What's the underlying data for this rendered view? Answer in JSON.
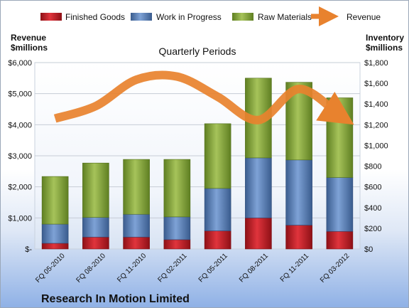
{
  "chart_data": {
    "type": "bar",
    "stacked": true,
    "title": "Quarterly Periods",
    "company": "Research In Motion Limited",
    "categories": [
      "FQ 05-2010",
      "FQ 08-2010",
      "FQ 11-2010",
      "FQ 02-2011",
      "FQ 05-2011",
      "FQ 08-2011",
      "FQ 11-2011",
      "FQ 03-2012"
    ],
    "left_axis": {
      "label_line1": "Revenue",
      "label_line2": "$millions",
      "ylim": [
        0,
        6000
      ],
      "ticks": [
        0,
        1000,
        2000,
        3000,
        4000,
        5000,
        6000
      ],
      "tick_labels": [
        "$-",
        "$1,000",
        "$2,000",
        "$3,000",
        "$4,000",
        "$5,000",
        "$6,000"
      ]
    },
    "right_axis": {
      "label_line1": "Inventory",
      "label_line2": "$millions",
      "ylim": [
        0,
        1800
      ],
      "ticks": [
        0,
        200,
        400,
        600,
        800,
        1000,
        1200,
        1400,
        1600,
        1800
      ],
      "tick_labels": [
        "$0",
        "$200",
        "$400",
        "$600",
        "$800",
        "$1,000",
        "$1,200",
        "$1,400",
        "$1,600",
        "$1,800"
      ]
    },
    "series": [
      {
        "name": "Finished Goods",
        "axis": "right",
        "kind": "bar",
        "color": "#c0202a",
        "values": [
          55,
          115,
          115,
          90,
          175,
          300,
          230,
          170
        ]
      },
      {
        "name": "Work in Progress",
        "axis": "right",
        "kind": "bar",
        "color": "#4f79b6",
        "values": [
          185,
          190,
          220,
          220,
          410,
          580,
          630,
          520
        ]
      },
      {
        "name": "Raw Materials",
        "axis": "right",
        "kind": "bar",
        "color": "#86a83c",
        "values": [
          460,
          525,
          530,
          555,
          625,
          770,
          750,
          770
        ]
      },
      {
        "name": "Revenue",
        "axis": "left",
        "kind": "line",
        "color": "#e8822e",
        "values": [
          4200,
          4600,
          5450,
          5550,
          4900,
          4150,
          5150,
          4300
        ]
      }
    ],
    "legend_position": "top",
    "grid": true
  }
}
